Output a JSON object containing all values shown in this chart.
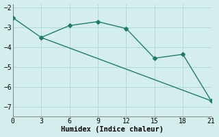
{
  "line1_x": [
    0,
    3,
    6,
    9,
    12,
    15,
    18,
    21
  ],
  "line1_y": [
    -2.5,
    -3.5,
    -2.9,
    -2.7,
    -3.05,
    -4.55,
    -4.35,
    -6.7
  ],
  "line2_x": [
    3,
    21
  ],
  "line2_y": [
    -3.5,
    -6.7
  ],
  "xlabel": "Humidex (Indice chaleur)",
  "xlim": [
    0,
    21
  ],
  "ylim": [
    -7.5,
    -1.8
  ],
  "xticks": [
    0,
    3,
    6,
    9,
    12,
    15,
    18,
    21
  ],
  "yticks": [
    -7,
    -6,
    -5,
    -4,
    -3,
    -2
  ],
  "line_color": "#217a6e",
  "bg_color": "#d4eeee",
  "grid_color": "#b2d8d8",
  "markersize": 3,
  "linewidth": 1.0,
  "font_family": "monospace"
}
